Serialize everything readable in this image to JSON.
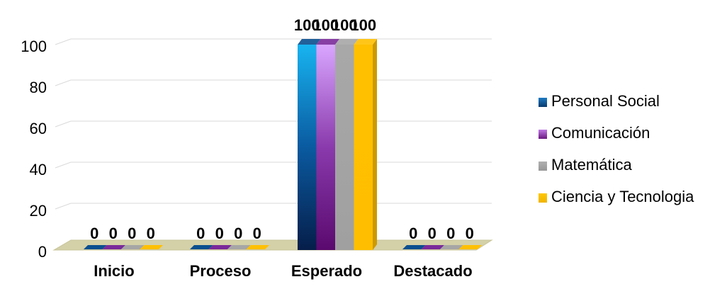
{
  "chart_data": {
    "type": "bar",
    "variant": "3d-clustered-column",
    "title": "",
    "xlabel": "",
    "ylabel": "",
    "ylim": [
      0,
      100
    ],
    "yticks": [
      0,
      20,
      40,
      60,
      80,
      100
    ],
    "grid": true,
    "legend": "right",
    "categories": [
      "Inicio",
      "Proceso",
      "Esperado",
      "Destacado"
    ],
    "series": [
      {
        "name": "Personal Social",
        "values": [
          0,
          0,
          100,
          0
        ],
        "color": "#0a4f8f"
      },
      {
        "name": "Comunicación",
        "values": [
          0,
          0,
          100,
          0
        ],
        "color": "#7a2a9a"
      },
      {
        "name": "Matemática",
        "values": [
          0,
          0,
          100,
          0
        ],
        "color": "#a6a6a6"
      },
      {
        "name": "Ciencia y Tecnologia",
        "values": [
          0,
          0,
          100,
          0
        ],
        "color": "#ffc000"
      }
    ],
    "data_labels": true,
    "floor_color": "#d4d0a8"
  }
}
